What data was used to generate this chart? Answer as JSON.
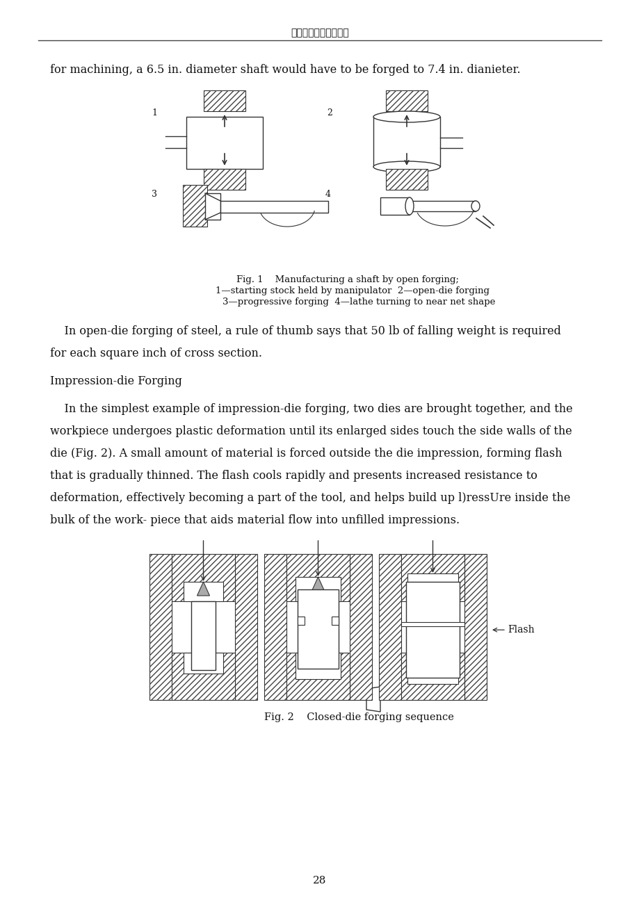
{
  "header_text": "沈阳理工大学学位论文",
  "page_number": "28",
  "bg_color": "#ffffff",
  "text_color": "#111111",
  "line1": "for machining, a 6.5 in. diameter shaft would have to be forged to 7.4 in. dianieter.",
  "fig1_caption_line1": "Fig. 1    Manufacturing a shaft by open forging;",
  "fig1_caption_line2": "1—starting stock held by manipulator  2—open-die forging",
  "fig1_caption_line3": "3—progressive forging  4—lathe turning to near net shape",
  "para1_line1": "    In open-die forging of steel, a rule of thumb says that 50 lb of falling weight is required",
  "para1_line2": "for each square inch of cross section.",
  "section_title": "Impression-die Forging",
  "para2_line1": "    In the simplest example of impression-die forging, two dies are brought together, and the",
  "para2_line2": "workpiece undergoes plastic deformation until its enlarged sides touch the side walls of the",
  "para2_line3": "die (Fig. 2). A small amount of material is forced outside the die impression, forming flash",
  "para2_line4": "that is gradually thinned. The flash cools rapidly and presents increased resistance to",
  "para2_line5": "deformation, effectively becoming a part of the tool, and helps build up l)ressUre inside the",
  "para2_line6": "bulk of the work- piece that aids material flow into unfilled impressions.",
  "fig2_caption": "Fig. 2    Closed-die forging sequence",
  "flash_label": "Flash"
}
